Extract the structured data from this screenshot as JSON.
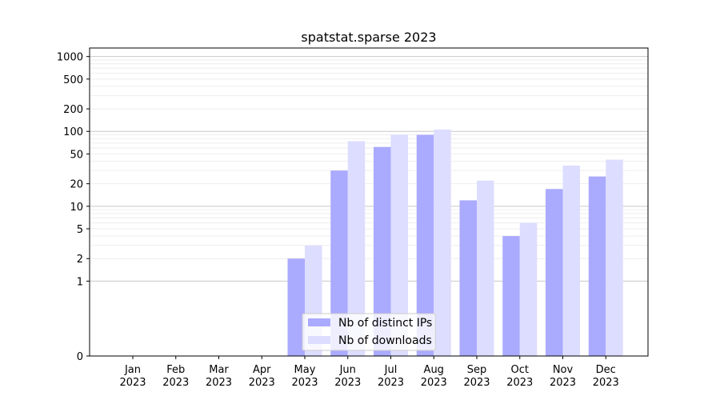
{
  "chart_data": {
    "type": "bar",
    "title": "spatstat.sparse 2023",
    "xlabel": "",
    "ylabel": "",
    "y_scale": "symlog",
    "ylim": [
      0,
      1300
    ],
    "y_ticks": [
      0,
      1,
      2,
      5,
      10,
      20,
      50,
      100,
      200,
      500,
      1000
    ],
    "y_tick_labels": [
      "0",
      "1",
      "2",
      "5",
      "10",
      "20",
      "50",
      "100",
      "200",
      "500",
      "1000"
    ],
    "categories": [
      "Jan\n2023",
      "Feb\n2023",
      "Mar\n2023",
      "Apr\n2023",
      "May\n2023",
      "Jun\n2023",
      "Jul\n2023",
      "Aug\n2023",
      "Sep\n2023",
      "Oct\n2023",
      "Nov\n2023",
      "Dec\n2023"
    ],
    "series": [
      {
        "name": "Nb of distinct IPs",
        "color": "#aaaaff",
        "values": [
          0,
          0,
          0,
          0,
          2,
          30,
          62,
          90,
          12,
          4,
          17,
          25
        ]
      },
      {
        "name": "Nb of downloads",
        "color": "#ddddff",
        "values": [
          0,
          0,
          0,
          0,
          3,
          74,
          90,
          106,
          22,
          6,
          35,
          42
        ]
      }
    ],
    "grid": true,
    "legend_position": "lower-center"
  }
}
